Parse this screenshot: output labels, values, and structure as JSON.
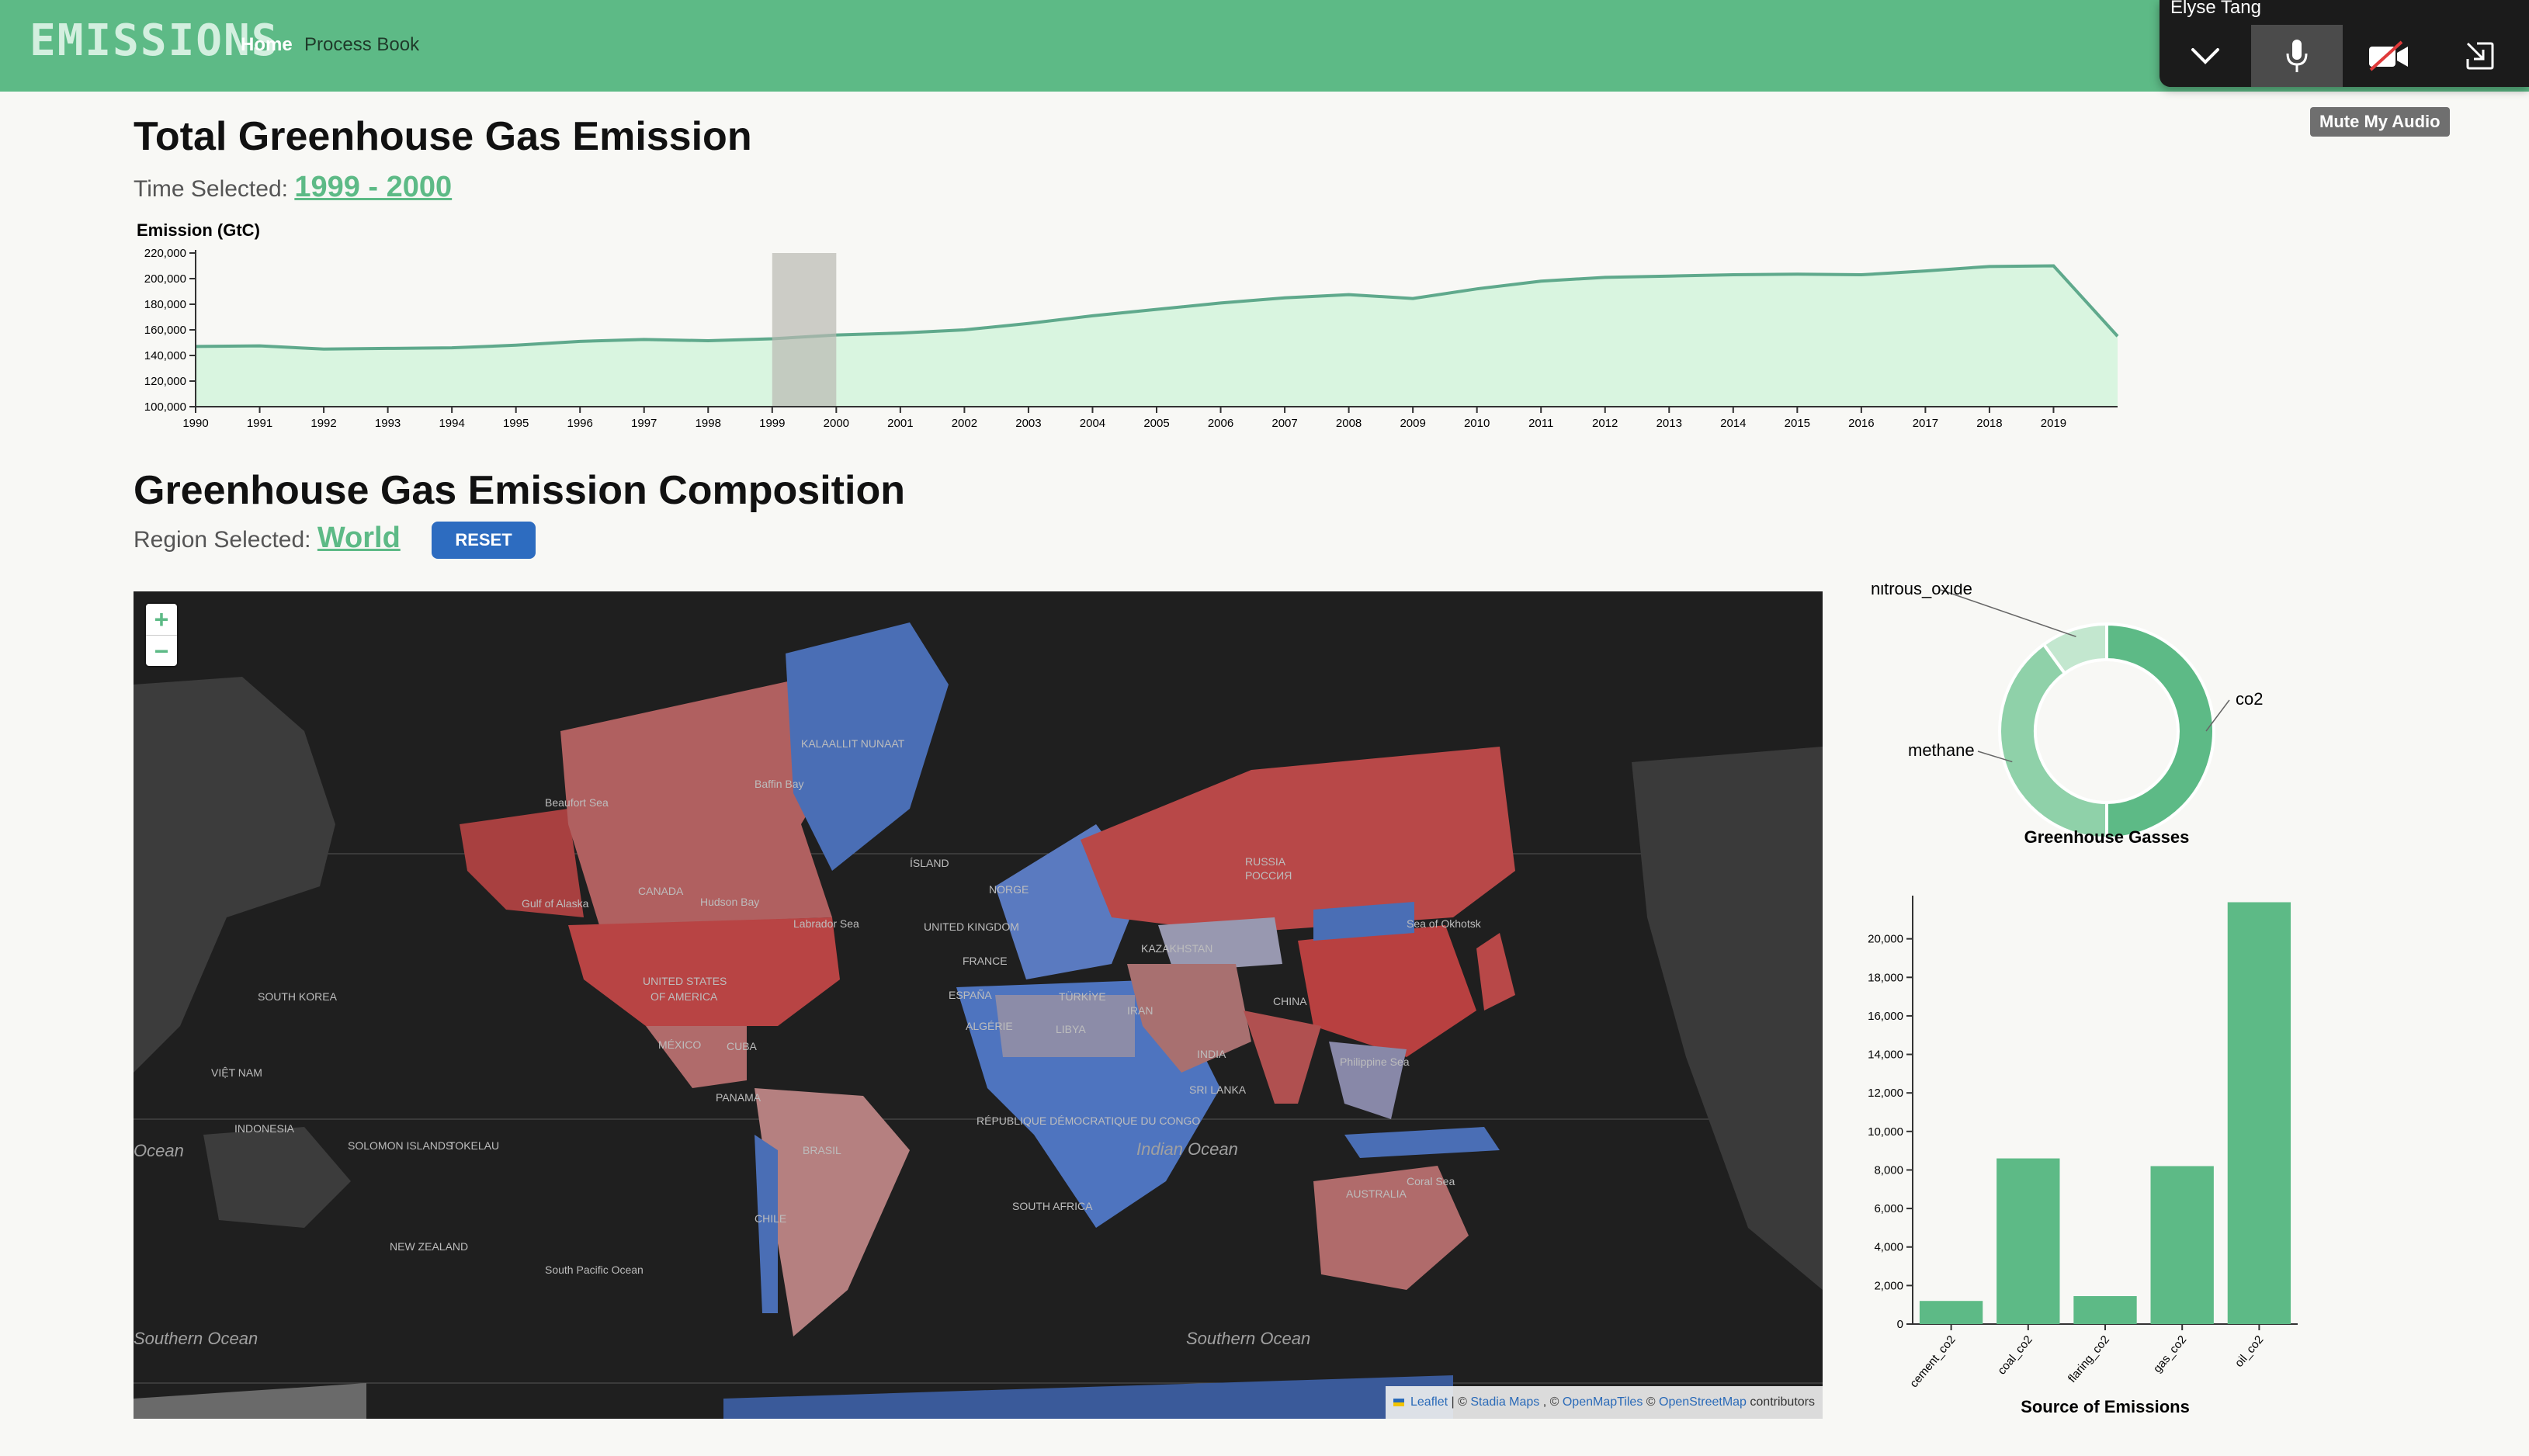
{
  "nav": {
    "brand": "EMISSIONS",
    "home": "Home",
    "process_book": "Process Book"
  },
  "meeting": {
    "user": "Elyse Tang",
    "tooltip": "Mute My Audio",
    "icons": [
      "chevron-down-icon",
      "microphone-icon",
      "video-off-icon",
      "exit-icon"
    ]
  },
  "total": {
    "title": "Total Greenhouse Gas Emission",
    "time_label": "Time Selected:",
    "time_value": "1999 - 2000"
  },
  "composition": {
    "title": "Greenhouse Gas Emission Composition",
    "region_label": "Region Selected:",
    "region_value": "World",
    "reset_label": "RESET"
  },
  "map": {
    "zoom_in": "+",
    "zoom_out": "−",
    "attribution": {
      "leaflet": "Leaflet",
      "sep1": "| © ",
      "stadia": "Stadia Maps",
      "sep2": ", © ",
      "openmaptiles": "OpenMapTiles",
      "sep3": " © ",
      "osm": "OpenStreetMap",
      "tail": " contributors"
    },
    "labels": [
      "KALAALLIT NUNAAT",
      "Baffin Bay",
      "Beaufort Sea",
      "CANADA",
      "Gulf of Alaska",
      "Hudson Bay",
      "Labrador Sea",
      "UNITED STATES",
      "OF AMERICA",
      "MÉXICO",
      "CUBA",
      "PANAMA",
      "BRASIL",
      "CHILE",
      "ÍSLAND",
      "NORGE",
      "UNITED KINGDOM",
      "FRANCE",
      "ESPAÑA",
      "ALGÉRIE",
      "LIBYA",
      "TÜRKİYE",
      "IRAN",
      "KAZAKHSTAN",
      "CHINA",
      "INDIA",
      "RUSSIA",
      "РОССИЯ",
      "SOUTH KOREA",
      "VIỆT NAM",
      "INDONESIA",
      "AUSTRALIA",
      "SOLOMON ISLANDS",
      "TOKELAU",
      "NEW ZEALAND",
      "SOUTH AFRICA",
      "Philippine Sea",
      "Sea of Okhotsk",
      "Coral Sea",
      "South Pacific Ocean",
      "SRI LANKA",
      "RÉPUBLIQUE DÉMOCRATIQUE DU CONGO"
    ],
    "oceans": [
      "Indian Ocean",
      "Southern Ocean",
      "Ocean",
      "Southern Ocean"
    ]
  },
  "chart_data": [
    {
      "type": "area",
      "ylabel": "Emission (GtC)",
      "ylim": [
        100000,
        220000
      ],
      "yticks": [
        100000,
        120000,
        140000,
        160000,
        180000,
        200000,
        220000
      ],
      "x": [
        1990,
        1991,
        1992,
        1993,
        1994,
        1995,
        1996,
        1997,
        1998,
        1999,
        2000,
        2001,
        2002,
        2003,
        2004,
        2005,
        2006,
        2007,
        2008,
        2009,
        2010,
        2011,
        2012,
        2013,
        2014,
        2015,
        2016,
        2017,
        2018,
        2019,
        2020
      ],
      "xticks": [
        1990,
        1991,
        1992,
        1993,
        1994,
        1995,
        1996,
        1997,
        1998,
        1999,
        2000,
        2001,
        2002,
        2003,
        2004,
        2005,
        2006,
        2007,
        2008,
        2009,
        2010,
        2011,
        2012,
        2013,
        2014,
        2015,
        2016,
        2017,
        2018,
        2019
      ],
      "values": [
        147000,
        147500,
        145000,
        145500,
        146000,
        148000,
        151000,
        152500,
        151500,
        153000,
        156000,
        157500,
        160000,
        165000,
        171000,
        176000,
        181000,
        185000,
        187500,
        184500,
        192000,
        198000,
        201000,
        202000,
        203000,
        203500,
        203000,
        206000,
        209500,
        210000,
        155000
      ],
      "selection": [
        1999,
        2000
      ],
      "color": "#5fa98c",
      "fill": "#d9f5e0"
    },
    {
      "type": "pie",
      "title": "Greenhouse Gasses",
      "labels": [
        "co2",
        "methane",
        "nitrous_oxide"
      ],
      "values": [
        50,
        40,
        10
      ],
      "colors": [
        "#5dba86",
        "#8fd1a9",
        "#c3e7cf"
      ]
    },
    {
      "type": "bar",
      "xlabel": "Source of Emissions",
      "categories": [
        "cement_co2",
        "coal_co2",
        "flaring_co2",
        "gas_co2",
        "oil_co2"
      ],
      "values": [
        1200,
        8600,
        1450,
        8200,
        21900
      ],
      "ylim": [
        0,
        22000
      ],
      "yticks": [
        0,
        2000,
        4000,
        6000,
        8000,
        10000,
        12000,
        14000,
        16000,
        18000,
        20000
      ],
      "color": "#5dba86"
    }
  ]
}
